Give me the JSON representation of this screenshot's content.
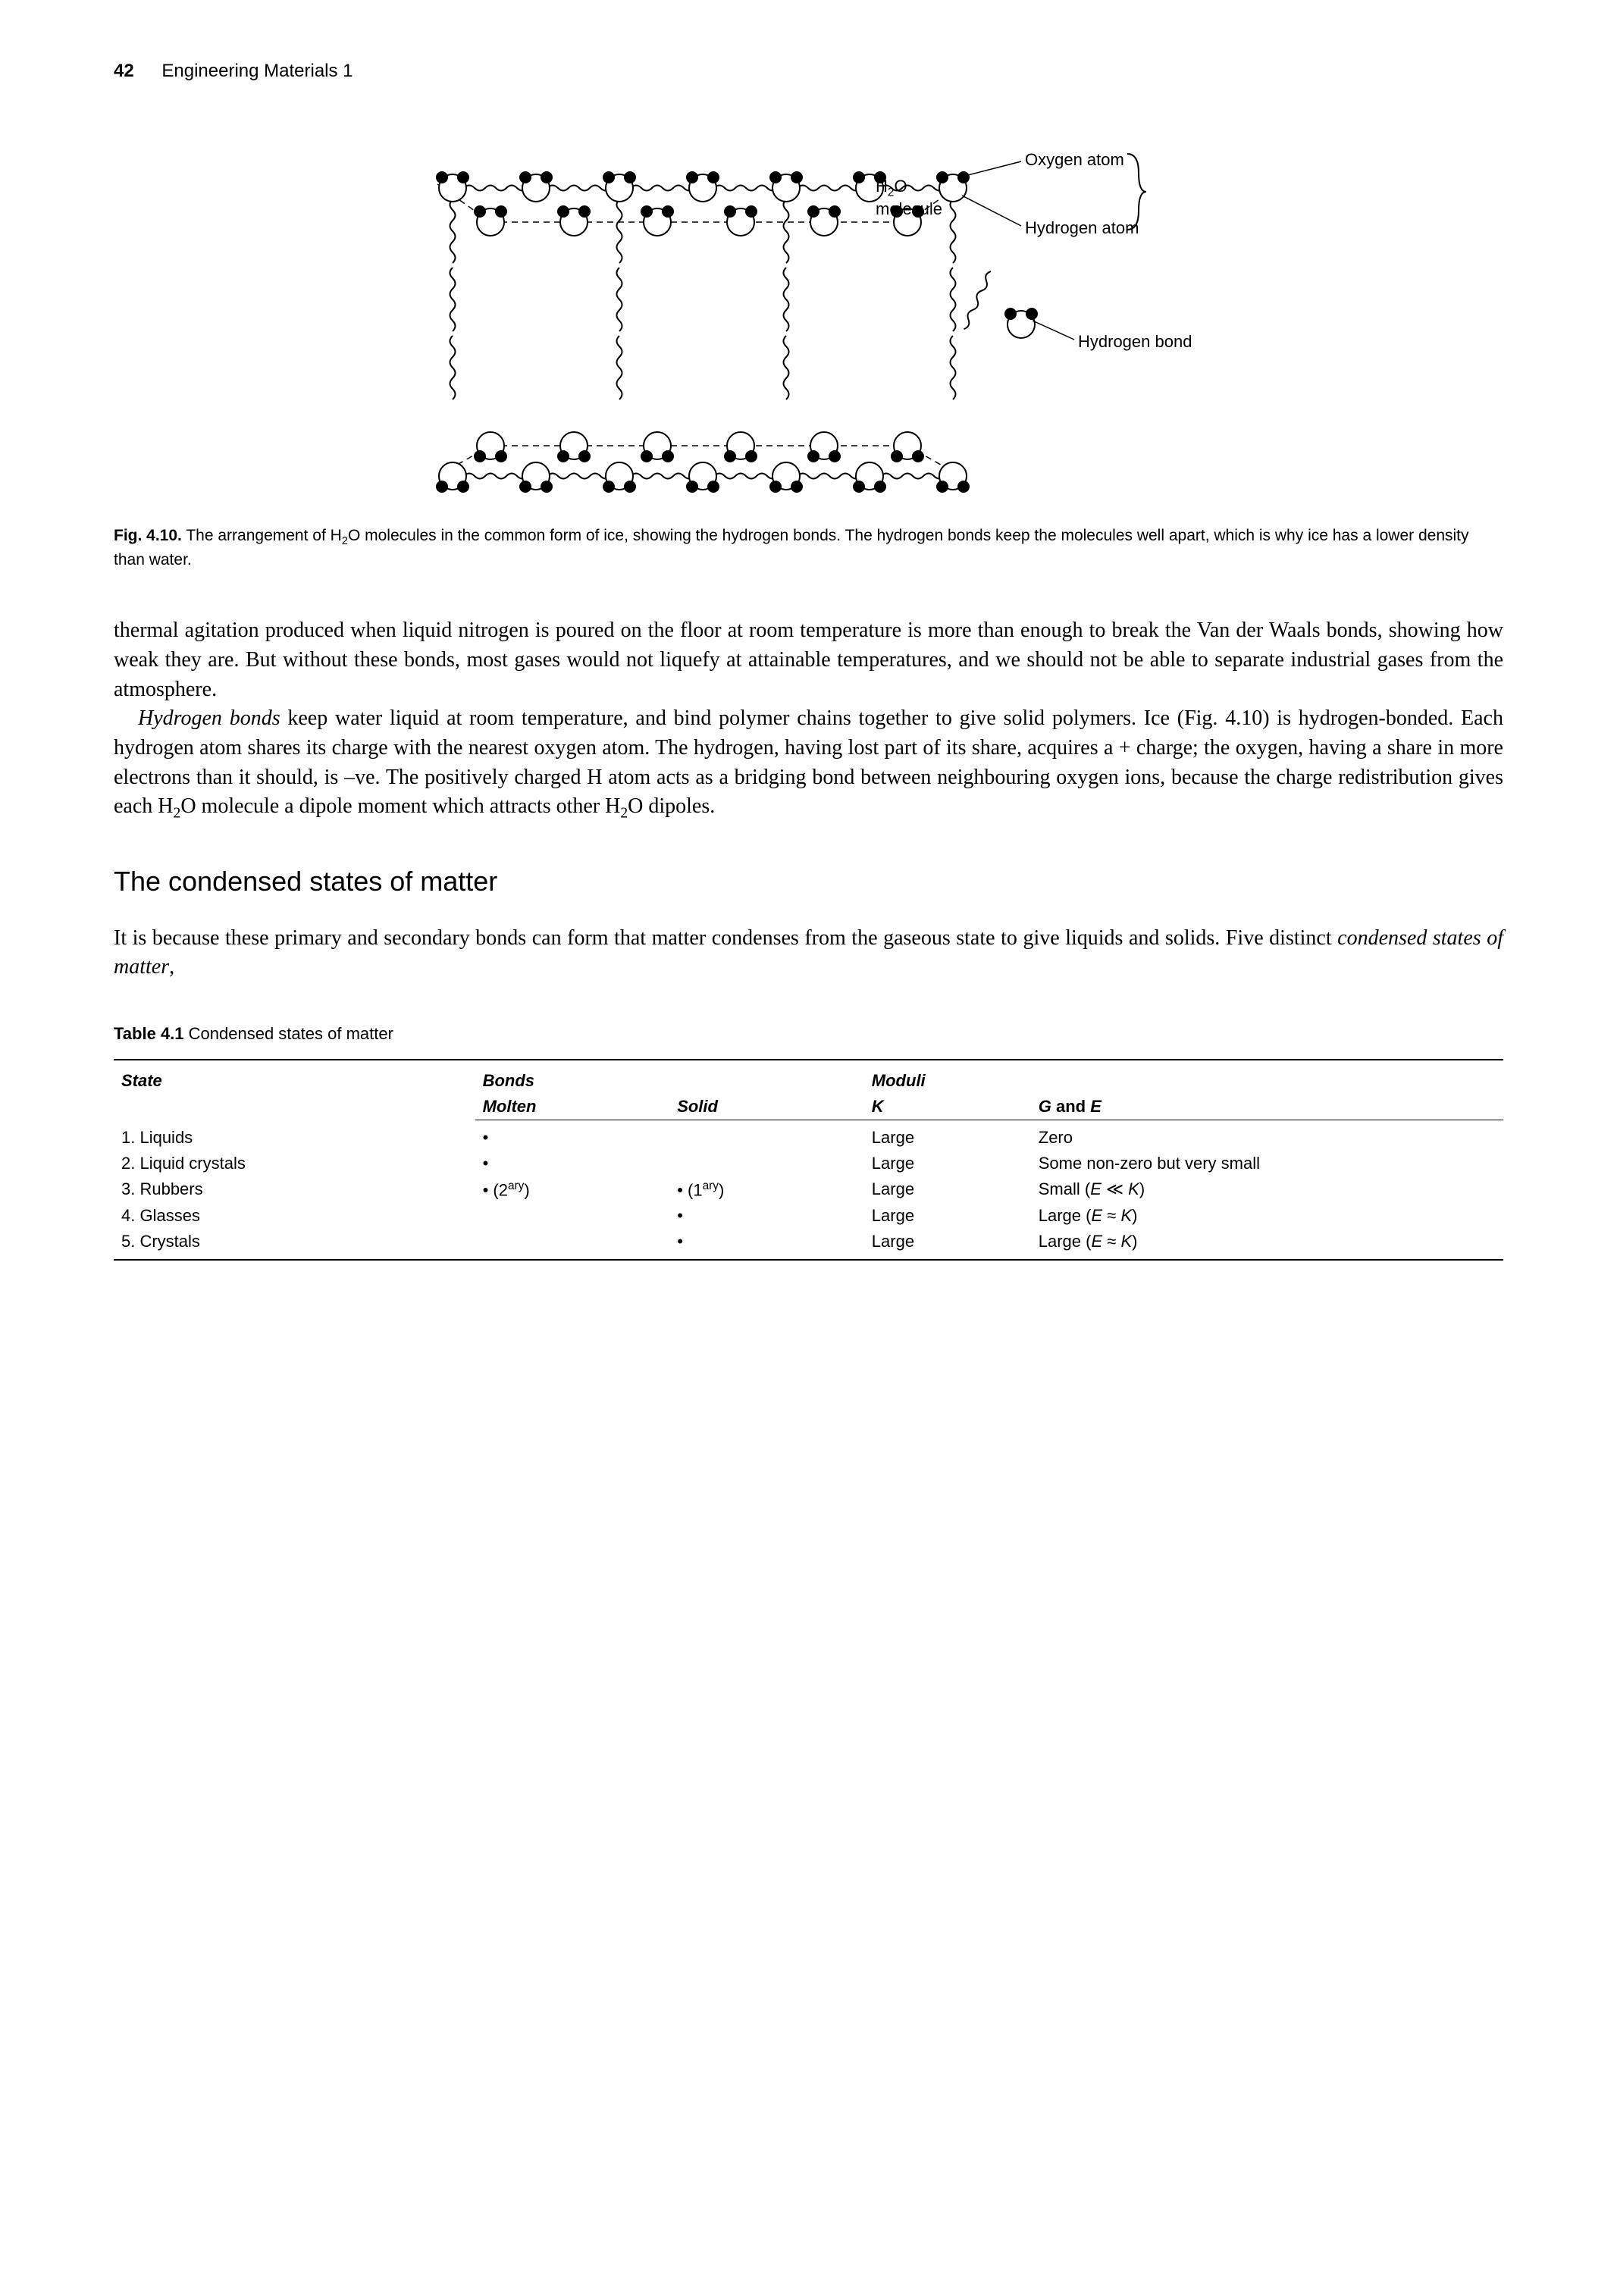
{
  "header": {
    "page_number": "42",
    "running_title": "Engineering Materials 1"
  },
  "figure": {
    "labels": {
      "oxygen": "Oxygen atom",
      "hydrogen_atom": "Hydrogen atom",
      "h2o_molecule_html": "H<sub>2</sub>O<br>molecule",
      "hydrogen_bond": "Hydrogen bond"
    },
    "caption_lead": "Fig. 4.10.",
    "caption_text_html": "The arrangement of H<sub>2</sub>O molecules in the common form of ice, showing the hydrogen bonds. The hydrogen bonds keep the molecules well apart, which is why ice has a lower density than water."
  },
  "paragraphs": {
    "p1": "thermal agitation produced when liquid nitrogen is poured on the floor at room temperature is more than enough to break the Van der Waals bonds, showing how weak they are. But without these bonds, most gases would not liquefy at attainable temperatures, and we should not be able to separate industrial gases from the atmosphere.",
    "p2_html": "<span class=\"ital\">Hydrogen bonds</span> keep water liquid at room temperature, and bind polymer chains together to give solid polymers. Ice (Fig. 4.10) is hydrogen-bonded. Each hydrogen atom shares its charge with the nearest oxygen atom. The hydrogen, having lost part of its share, acquires a + charge; the oxygen, having a share in more electrons than it should, is –ve. The positively charged H atom acts as a bridging bond between neighbouring oxygen ions, because the charge redistribution gives each H<sub>2</sub>O molecule a dipole moment which attracts other H<sub>2</sub>O dipoles."
  },
  "section_heading": "The condensed states of matter",
  "paragraphs2": {
    "p3_html": "It is because these primary and secondary bonds can form that matter condenses from the gaseous state to give liquids and solids. Five distinct <span class=\"ital\">condensed states of matter</span>,"
  },
  "table": {
    "caption_lead": "Table 4.1",
    "caption_text": "Condensed states of matter",
    "columns": {
      "state": "State",
      "bonds": "Bonds",
      "moduli": "Moduli",
      "molten": "Molten",
      "solid": "Solid",
      "K": "K",
      "GE_html": "G <span style=\"font-style:normal\">and</span> E"
    },
    "rows": [
      {
        "state": "1. Liquids",
        "molten_html": "•",
        "solid_html": "",
        "K": "Large",
        "GE": "Zero"
      },
      {
        "state": "2. Liquid crystals",
        "molten_html": "•",
        "solid_html": "",
        "K": "Large",
        "GE": "Some non-zero but very small"
      },
      {
        "state": "3. Rubbers",
        "molten_html": "• (2<sup>ary</sup>)",
        "solid_html": "• (1<sup>ary</sup>)",
        "K": "Large",
        "GE": "Small (<span class=\"ital\">E</span> ≪ <span class=\"ital\">K</span>)"
      },
      {
        "state": "4. Glasses",
        "molten_html": "",
        "solid_html": "•",
        "K": "Large",
        "GE": "Large (<span class=\"ital\">E</span> ≈ <span class=\"ital\">K</span>)"
      },
      {
        "state": "5. Crystals",
        "molten_html": "",
        "solid_html": "•",
        "K": "Large",
        "GE": "Large (<span class=\"ital\">E</span> ≈ <span class=\"ital\">K</span>)"
      }
    ]
  },
  "style": {
    "text_color": "#000000",
    "background": "#ffffff",
    "atom_o_r": 18,
    "atom_h_r": 8,
    "stroke": "#000000",
    "stroke_width": 2
  }
}
